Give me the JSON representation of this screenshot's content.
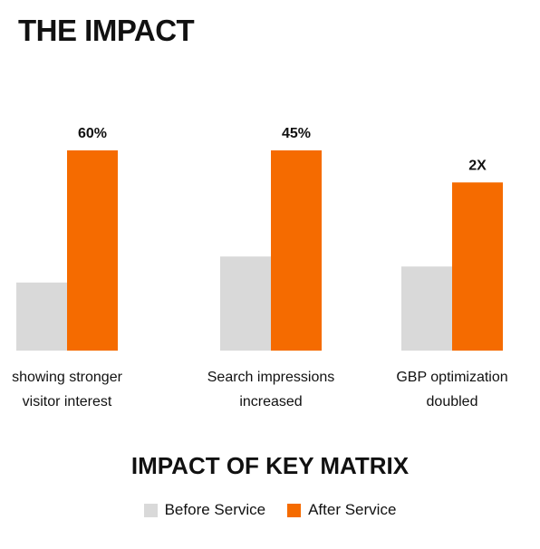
{
  "page": {
    "title": "THE IMPACT"
  },
  "colors": {
    "before": "#d9d9d9",
    "after": "#f56b00"
  },
  "chart_data": {
    "type": "bar",
    "title": "IMPACT OF KEY MATRIX",
    "xlabel": "",
    "ylabel": "",
    "grid": false,
    "legend_position": "bottom",
    "ylim": [
      0,
      100
    ],
    "categories": [
      [
        "showing stronger",
        "visitor interest"
      ],
      [
        "Search impressions",
        "increased"
      ],
      [
        "GBP optimization",
        "doubled"
      ]
    ],
    "series": [
      {
        "name": "Before Service",
        "values": [
          34,
          47,
          42
        ]
      },
      {
        "name": "After Service",
        "values": [
          100,
          100,
          84
        ]
      }
    ],
    "data_labels": [
      "60%",
      "45%",
      "2X"
    ]
  }
}
